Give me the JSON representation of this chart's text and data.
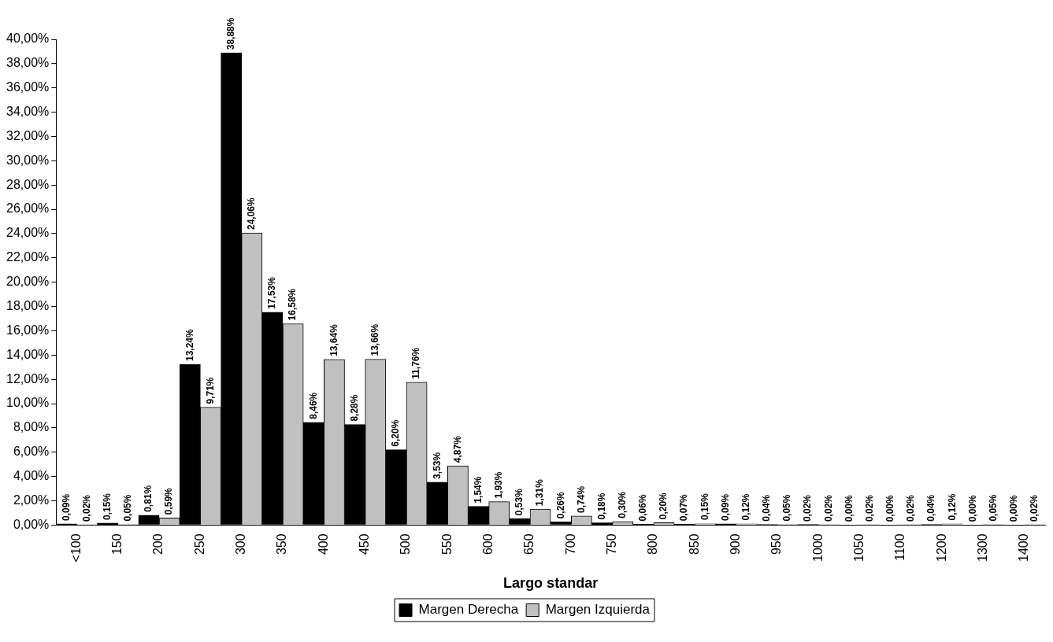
{
  "chart_data": {
    "type": "bar",
    "xlabel": "Largo standar",
    "categories": [
      "<100",
      "150",
      "200",
      "250",
      "300",
      "350",
      "400",
      "450",
      "500",
      "550",
      "600",
      "650",
      "700",
      "750",
      "800",
      "850",
      "900",
      "950",
      "1000",
      "1050",
      "1100",
      "1200",
      "1300",
      "1400"
    ],
    "series": [
      {
        "name": "Margen Derecha",
        "color": "#000000",
        "values": [
          0.09,
          0.15,
          0.81,
          13.24,
          38.88,
          17.53,
          8.46,
          8.28,
          6.2,
          3.53,
          1.54,
          0.53,
          0.26,
          0.18,
          0.06,
          0.07,
          0.09,
          0.04,
          0.02,
          0.0,
          0.0,
          0.04,
          0.0,
          0.0
        ],
        "value_labels": [
          "0,09%",
          "0,15%",
          "0,81%",
          "13,24%",
          "38,88%",
          "17,53%",
          "8,46%",
          "8,28%",
          "6,20%",
          "3,53%",
          "1,54%",
          "0,53%",
          "0,26%",
          "0,18%",
          "0,06%",
          "0,07%",
          "0,09%",
          "0,04%",
          "0,02%",
          "0,00%",
          "0,00%",
          "0,04%",
          "0,00%",
          "0,00%"
        ]
      },
      {
        "name": "Margen Izquierda",
        "color": "#c0c0c0",
        "values": [
          0.02,
          0.05,
          0.59,
          9.71,
          24.06,
          16.58,
          13.64,
          13.66,
          11.76,
          4.87,
          1.93,
          1.31,
          0.74,
          0.3,
          0.2,
          0.15,
          0.12,
          0.05,
          0.02,
          0.02,
          0.02,
          0.12,
          0.05,
          0.02
        ],
        "value_labels": [
          "0,02%",
          "0,05%",
          "0,59%",
          "9,71%",
          "24,06%",
          "16,58%",
          "13,64%",
          "13,66%",
          "11,76%",
          "4,87%",
          "1,93%",
          "1,31%",
          "0,74%",
          "0,30%",
          "0,20%",
          "0,15%",
          "0,12%",
          "0,05%",
          "0,02%",
          "0,02%",
          "0,02%",
          "0,12%",
          "0,05%",
          "0,02%"
        ]
      }
    ],
    "ylim": [
      0,
      40
    ],
    "yticks": [
      {
        "value": 0,
        "label": "0,00%"
      },
      {
        "value": 2,
        "label": "2,00%"
      },
      {
        "value": 4,
        "label": "4,00%"
      },
      {
        "value": 6,
        "label": "6,00%"
      },
      {
        "value": 8,
        "label": "8,00%"
      },
      {
        "value": 10,
        "label": "10,00%"
      },
      {
        "value": 12,
        "label": "12,00%"
      },
      {
        "value": 14,
        "label": "14,00%"
      },
      {
        "value": 16,
        "label": "16,00%"
      },
      {
        "value": 18,
        "label": "18,00%"
      },
      {
        "value": 20,
        "label": "20,00%"
      },
      {
        "value": 22,
        "label": "22,00%"
      },
      {
        "value": 24,
        "label": "24,00%"
      },
      {
        "value": 26,
        "label": "26,00%"
      },
      {
        "value": 28,
        "label": "28,00%"
      },
      {
        "value": 30,
        "label": "30,00%"
      },
      {
        "value": 32,
        "label": "32,00%"
      },
      {
        "value": 34,
        "label": "34,00%"
      },
      {
        "value": 36,
        "label": "36,00%"
      },
      {
        "value": 38,
        "label": "38,00%"
      },
      {
        "value": 40,
        "label": "40,00%"
      }
    ],
    "grid": false,
    "legend": "bottom"
  }
}
